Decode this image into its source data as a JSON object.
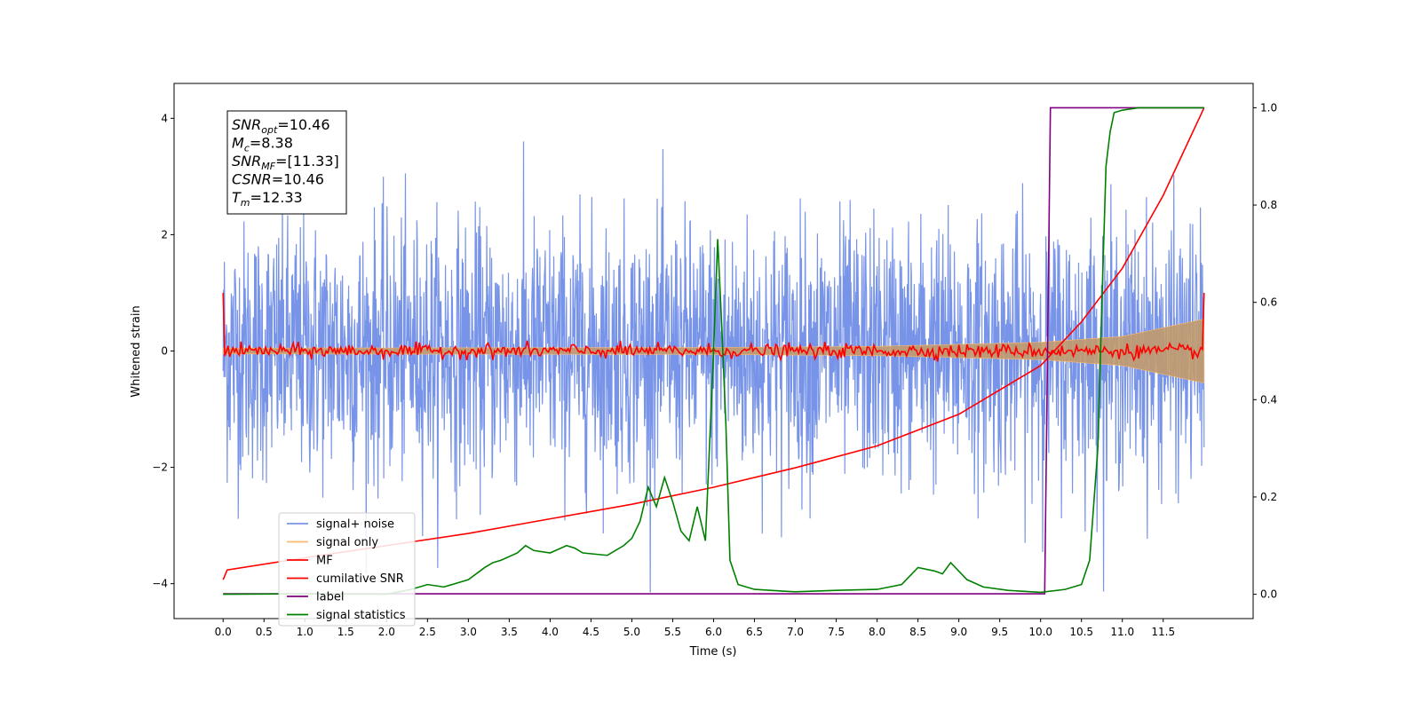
{
  "chart_data": {
    "type": "line",
    "xlabel": "Time (s)",
    "ylabel": "Whitened strain",
    "xlim": [
      -0.6,
      12.6
    ],
    "ylim": [
      -4.6,
      4.6
    ],
    "y2lim": [
      -0.05,
      1.05
    ],
    "xticks": [
      "0.0",
      "0.5",
      "1.0",
      "1.5",
      "2.0",
      "2.5",
      "3.0",
      "3.5",
      "4.0",
      "4.5",
      "5.0",
      "5.5",
      "6.0",
      "6.5",
      "7.0",
      "7.5",
      "8.0",
      "8.5",
      "9.0",
      "9.5",
      "10.0",
      "10.5",
      "11.0",
      "11.5"
    ],
    "yticks": [
      "4",
      "2",
      "0",
      "−2",
      "−4"
    ],
    "y2ticks": [
      "1.0",
      "0.8",
      "0.6",
      "0.4",
      "0.2",
      "0.0"
    ],
    "legend_position": "lower-left",
    "info_box": {
      "lines": [
        {
          "symbol": "SNR",
          "sub": "opt",
          "value": "=10.46"
        },
        {
          "symbol": "M",
          "sub": "c",
          "value": "=8.38"
        },
        {
          "symbol": "SNR",
          "sub": "MF",
          "value": "=[11.33]"
        },
        {
          "symbol": "CSNR",
          "sub": "",
          "value": "=10.46"
        },
        {
          "symbol": "T",
          "sub": "m",
          "value": "=12.33"
        }
      ]
    },
    "series": [
      {
        "name": "signal+ noise",
        "color": "#7894e8",
        "axis": "left",
        "kind": "noise",
        "x_range": [
          0,
          12.0
        ],
        "amplitude_std": 1.1
      },
      {
        "name": "signal only",
        "color": "#fdb96e",
        "axis": "left",
        "kind": "chirp_envelope",
        "x": [
          0,
          6,
          8,
          10,
          11,
          12.0
        ],
        "amplitude": [
          0.05,
          0.06,
          0.08,
          0.15,
          0.25,
          0.55
        ]
      },
      {
        "name": "MF",
        "color": "#ff0000",
        "axis": "left",
        "kind": "mf_noise",
        "x_range": [
          0,
          12.0
        ],
        "start_value": 1.0,
        "end_value": 1.0,
        "amplitude_std": 0.06
      },
      {
        "name": "cumilative SNR",
        "color": "#ff0000",
        "axis": "right",
        "x": [
          0,
          0.05,
          1,
          2,
          3,
          4,
          5,
          6,
          7,
          8,
          9,
          10,
          10.5,
          11,
          11.5,
          12.0
        ],
        "y": [
          0.03,
          0.05,
          0.075,
          0.1,
          0.125,
          0.155,
          0.185,
          0.22,
          0.26,
          0.305,
          0.37,
          0.47,
          0.56,
          0.67,
          0.82,
          1.0
        ]
      },
      {
        "name": "label",
        "color": "#800080",
        "axis": "right",
        "x": [
          0,
          10.05,
          10.12,
          12.0
        ],
        "y": [
          0.001,
          0.001,
          1.0,
          1.0
        ]
      },
      {
        "name": "signal statistics",
        "color": "#008000",
        "axis": "right",
        "x": [
          0,
          1.0,
          2.0,
          2.3,
          2.5,
          2.7,
          3.0,
          3.2,
          3.3,
          3.4,
          3.6,
          3.7,
          3.8,
          4.0,
          4.2,
          4.3,
          4.4,
          4.7,
          4.9,
          5.0,
          5.1,
          5.2,
          5.3,
          5.4,
          5.5,
          5.6,
          5.7,
          5.8,
          5.9,
          6.0,
          6.05,
          6.1,
          6.15,
          6.2,
          6.3,
          6.5,
          7.0,
          7.5,
          8.0,
          8.3,
          8.5,
          8.7,
          8.8,
          8.9,
          9.1,
          9.3,
          9.6,
          10.0,
          10.3,
          10.5,
          10.6,
          10.7,
          10.75,
          10.8,
          10.85,
          10.9,
          11.0,
          11.2,
          12.0
        ],
        "y": [
          0.0,
          0.001,
          0.0,
          0.01,
          0.02,
          0.015,
          0.03,
          0.055,
          0.065,
          0.07,
          0.085,
          0.1,
          0.09,
          0.085,
          0.1,
          0.095,
          0.085,
          0.08,
          0.1,
          0.115,
          0.15,
          0.22,
          0.18,
          0.24,
          0.19,
          0.13,
          0.11,
          0.18,
          0.11,
          0.5,
          0.73,
          0.55,
          0.35,
          0.07,
          0.02,
          0.01,
          0.005,
          0.008,
          0.01,
          0.02,
          0.055,
          0.048,
          0.042,
          0.065,
          0.03,
          0.015,
          0.008,
          0.004,
          0.01,
          0.02,
          0.07,
          0.3,
          0.6,
          0.88,
          0.95,
          0.99,
          0.995,
          1.0,
          1.0
        ]
      }
    ]
  }
}
